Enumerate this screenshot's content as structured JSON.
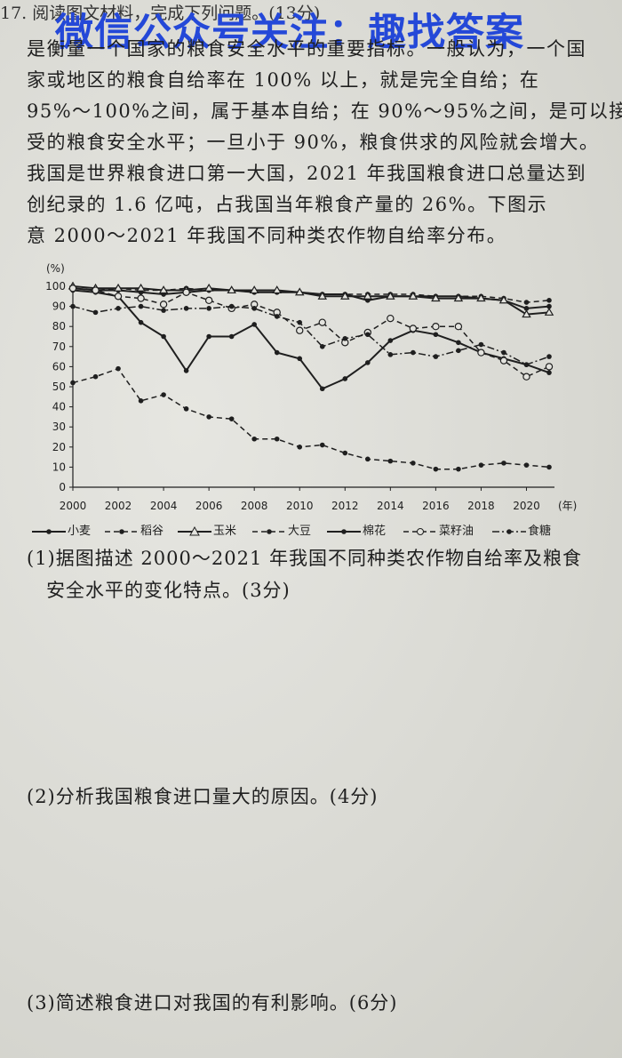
{
  "header": {
    "partial_line": "17. 阅读图文材料，完成下列问题。(13分)",
    "watermark": "微信公众号关注：趣找答案"
  },
  "passage": {
    "lines": [
      "是衡量一个国家的粮食安全水平的重要指标。一般认为，一个国",
      "家或地区的粮食自给率在 100% 以上，就是完全自给；在",
      "95%～100%之间，属于基本自给；在 90%～95%之间，是可以接",
      "受的粮食安全水平；一旦小于 90%，粮食供求的风险就会增大。",
      "我国是世界粮食进口第一大国，2021 年我国粮食进口总量达到",
      "创纪录的 1.6 亿吨，占我国当年粮食产量的 26%。下图示",
      "意 2000～2021 年我国不同种类农作物自给率分布。"
    ]
  },
  "chart_data": {
    "type": "line",
    "ylabel": "(%)",
    "xlabel": "(年)",
    "ylim": [
      0,
      100
    ],
    "xlim": [
      2000,
      2021
    ],
    "yticks": [
      "0",
      "10",
      "20",
      "30",
      "40",
      "50",
      "60",
      "70",
      "80",
      "90",
      "100"
    ],
    "xticks": [
      "2000",
      "2002",
      "2004",
      "2006",
      "2008",
      "2010",
      "2012",
      "2014",
      "2016",
      "2018",
      "2020"
    ],
    "x": [
      2000,
      2001,
      2002,
      2003,
      2004,
      2005,
      2006,
      2007,
      2008,
      2009,
      2010,
      2011,
      2012,
      2013,
      2014,
      2015,
      2016,
      2017,
      2018,
      2019,
      2020,
      2021
    ],
    "series": [
      {
        "name": "小麦",
        "style": "solid",
        "marker": "dot",
        "values": [
          99,
          98,
          98,
          97,
          96,
          97,
          98,
          98,
          97,
          97,
          97,
          96,
          96,
          93,
          95,
          95,
          95,
          95,
          94,
          93,
          89,
          90
        ]
      },
      {
        "name": "稻谷",
        "style": "dashed",
        "marker": "dot",
        "values": [
          99,
          98,
          99,
          98,
          98,
          99,
          98,
          98,
          97,
          97,
          97,
          96,
          96,
          96,
          96,
          96,
          95,
          95,
          95,
          94,
          92,
          93
        ]
      },
      {
        "name": "玉米",
        "style": "solid",
        "marker": "triangle",
        "values": [
          100,
          99,
          99,
          99,
          98,
          98,
          99,
          98,
          98,
          98,
          97,
          95,
          95,
          95,
          95,
          95,
          94,
          94,
          94,
          93,
          86,
          87
        ]
      },
      {
        "name": "大豆",
        "style": "dashed",
        "marker": "dot",
        "values": [
          52,
          55,
          59,
          43,
          46,
          39,
          35,
          34,
          24,
          24,
          20,
          21,
          17,
          14,
          13,
          12,
          9,
          9,
          11,
          12,
          11,
          10
        ]
      },
      {
        "name": "棉花",
        "style": "solid",
        "marker": "dot",
        "values": [
          98,
          97,
          95,
          82,
          75,
          58,
          75,
          75,
          81,
          67,
          64,
          49,
          54,
          62,
          73,
          78,
          76,
          72,
          67,
          64,
          61,
          57
        ]
      },
      {
        "name": "菜籽油",
        "style": "dashed",
        "marker": "circle",
        "values": [
          99,
          98,
          95,
          94,
          91,
          97,
          93,
          89,
          91,
          87,
          78,
          82,
          72,
          77,
          84,
          79,
          80,
          80,
          67,
          63,
          55,
          60
        ]
      },
      {
        "name": "食糖",
        "style": "dashdot",
        "marker": "dot",
        "values": [
          90,
          87,
          89,
          90,
          88,
          89,
          89,
          90,
          89,
          85,
          82,
          70,
          74,
          76,
          66,
          67,
          65,
          68,
          71,
          67,
          61,
          65
        ]
      }
    ]
  },
  "questions": {
    "q1_line1": "(1)据图描述 2000～2021 年我国不同种类农作物自给率及粮食",
    "q1_line2": "安全水平的变化特点。(3分)",
    "q2": "(2)分析我国粮食进口量大的原因。(4分)",
    "q3": "(3)简述粮食进口对我国的有利影响。(6分)"
  },
  "colors": {
    "ink": "#1f1f1f",
    "watermark": "#2448d8",
    "paper": "#dcdcd6"
  }
}
